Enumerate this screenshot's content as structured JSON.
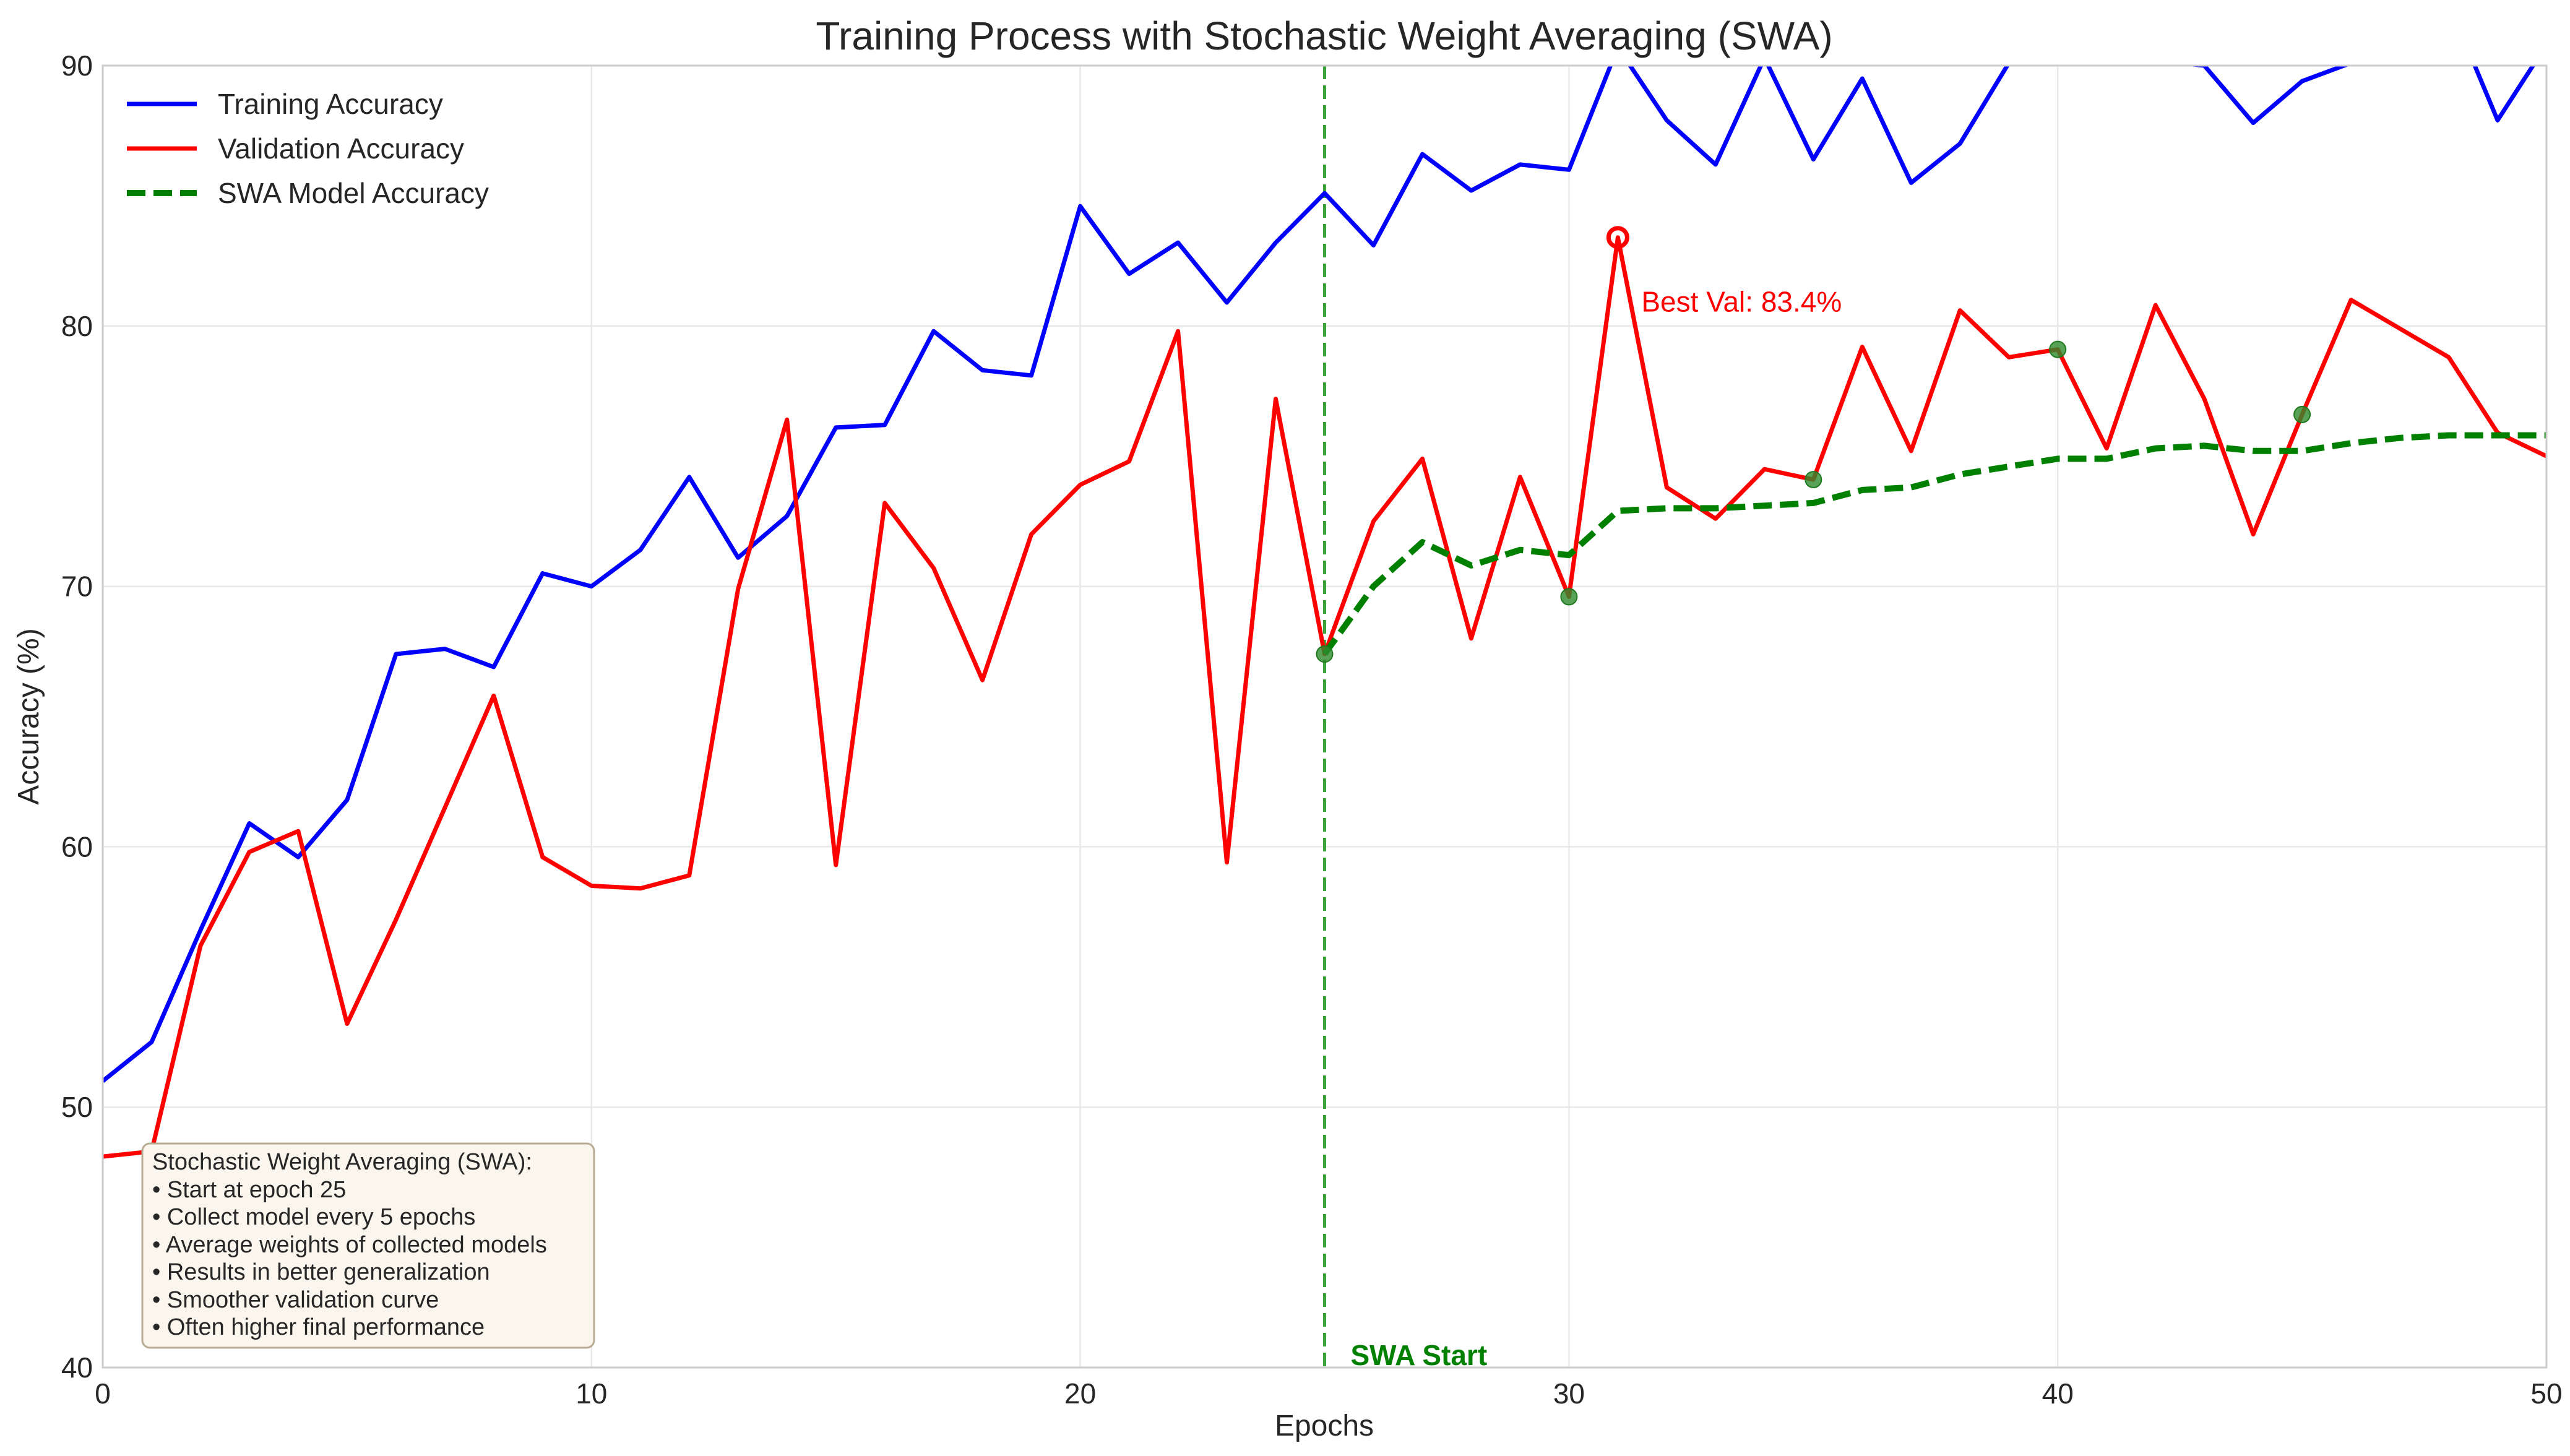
{
  "chart_data": {
    "type": "line",
    "title": "Training Process with Stochastic Weight Averaging (SWA)",
    "xlabel": "Epochs",
    "ylabel": "Accuracy (%)",
    "xlim": [
      0,
      50
    ],
    "ylim": [
      40,
      90
    ],
    "xticks": [
      0,
      10,
      20,
      30,
      40,
      50
    ],
    "yticks": [
      40,
      50,
      60,
      70,
      80,
      90
    ],
    "grid": true,
    "legend_position": "top-left",
    "series": [
      {
        "name": "Training Accuracy",
        "color": "#0000ff",
        "style": "solid",
        "x": [
          0,
          1,
          2,
          3,
          4,
          5,
          6,
          7,
          8,
          9,
          10,
          11,
          12,
          13,
          14,
          15,
          16,
          17,
          18,
          19,
          20,
          21,
          22,
          23,
          24,
          25,
          26,
          27,
          28,
          29,
          30,
          31,
          32,
          33,
          34,
          35,
          36,
          37,
          38,
          39,
          40,
          41,
          42,
          43,
          44,
          45,
          46,
          47,
          48,
          49,
          50
        ],
        "values": [
          51.0,
          52.5,
          56.8,
          60.9,
          59.6,
          61.8,
          67.4,
          67.6,
          66.9,
          70.5,
          70.0,
          71.4,
          74.2,
          71.1,
          72.7,
          76.1,
          76.2,
          79.8,
          78.3,
          78.1,
          84.6,
          82.0,
          83.2,
          80.9,
          83.2,
          85.1,
          83.1,
          86.6,
          85.2,
          86.2,
          86.0,
          90.7,
          87.9,
          86.2,
          90.3,
          86.4,
          89.5,
          85.5,
          87.0,
          90.1,
          91.4,
          91.0,
          90.2,
          90.0,
          87.8,
          89.4,
          90.1,
          90.6,
          92.4,
          87.9,
          90.8
        ]
      },
      {
        "name": "Validation Accuracy",
        "color": "#ff0000",
        "style": "solid",
        "x": [
          0,
          1,
          2,
          3,
          4,
          5,
          6,
          7,
          8,
          9,
          10,
          11,
          12,
          13,
          14,
          15,
          16,
          17,
          18,
          19,
          20,
          21,
          22,
          23,
          24,
          25,
          26,
          27,
          28,
          29,
          30,
          31,
          32,
          33,
          34,
          35,
          36,
          37,
          38,
          39,
          40,
          41,
          42,
          43,
          44,
          45,
          46,
          47,
          48,
          49,
          50
        ],
        "values": [
          48.1,
          48.3,
          56.2,
          59.8,
          60.6,
          53.2,
          57.2,
          61.5,
          65.8,
          59.6,
          58.5,
          58.4,
          58.9,
          69.9,
          76.4,
          59.3,
          73.2,
          70.7,
          66.4,
          72.0,
          73.9,
          74.8,
          79.8,
          59.4,
          77.2,
          67.4,
          72.5,
          74.9,
          68.0,
          74.2,
          69.6,
          83.4,
          73.8,
          72.6,
          74.5,
          74.1,
          79.2,
          75.2,
          80.6,
          78.8,
          79.1,
          75.3,
          80.8,
          77.2,
          72.0,
          76.6,
          81.0,
          79.9,
          78.8,
          75.9,
          75.0
        ]
      },
      {
        "name": "SWA Model Accuracy",
        "color": "#008000",
        "style": "dashed",
        "x": [
          25,
          26,
          27,
          28,
          29,
          30,
          31,
          32,
          33,
          34,
          35,
          36,
          37,
          38,
          39,
          40,
          41,
          42,
          43,
          44,
          45,
          46,
          47,
          48,
          49,
          50
        ],
        "values": [
          67.4,
          70.0,
          71.7,
          70.8,
          71.4,
          71.2,
          72.9,
          73.0,
          73.0,
          73.1,
          73.2,
          73.7,
          73.8,
          74.3,
          74.6,
          74.9,
          74.9,
          75.3,
          75.4,
          75.2,
          75.2,
          75.5,
          75.7,
          75.8,
          75.8,
          75.8
        ]
      }
    ],
    "swa_collection_points": {
      "color": "#2e8b2e",
      "x": [
        25,
        30,
        35,
        40,
        45
      ],
      "values": [
        67.4,
        69.6,
        74.1,
        79.1,
        76.6
      ]
    },
    "swa_start": {
      "x": 25,
      "label": "SWA Start",
      "color": "#008000"
    },
    "best_val": {
      "x": 31,
      "value": 83.4,
      "label": "Best Val: 83.4%",
      "color": "#ff0000"
    },
    "info_box": {
      "lines": [
        "Stochastic Weight Averaging (SWA):",
        "• Start at epoch 25",
        "• Collect model every 5 epochs",
        "• Average weights of collected models",
        "• Results in better generalization",
        "• Smoother validation curve",
        "• Often higher final performance"
      ],
      "background": "#faf6ee"
    }
  }
}
